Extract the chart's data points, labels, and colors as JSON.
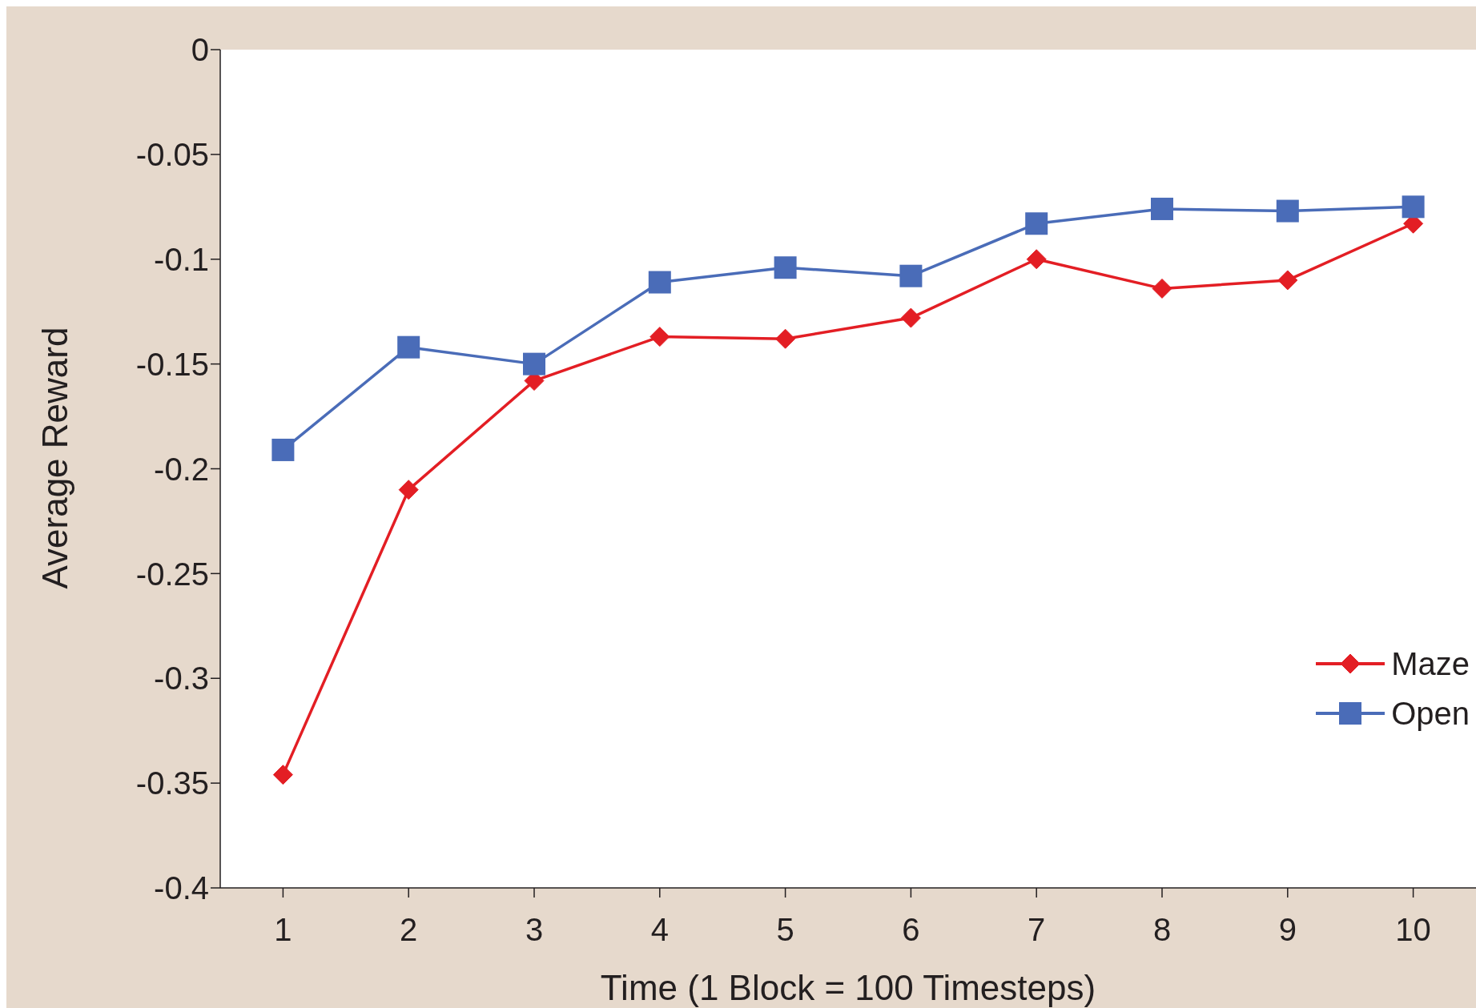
{
  "chart_data": {
    "type": "line",
    "xlabel": "Time (1 Block = 100 Timesteps)",
    "ylabel": "Average Reward",
    "categories": [
      "1",
      "2",
      "3",
      "4",
      "5",
      "6",
      "7",
      "8",
      "9",
      "10"
    ],
    "series": [
      {
        "name": "Maze",
        "color": "#e31e24",
        "marker": "diamond",
        "values": [
          -0.346,
          -0.21,
          -0.158,
          -0.137,
          -0.138,
          -0.128,
          -0.1,
          -0.114,
          -0.11,
          -0.083
        ]
      },
      {
        "name": "Open",
        "color": "#4a6cb8",
        "marker": "square",
        "values": [
          -0.191,
          -0.142,
          -0.15,
          -0.111,
          -0.104,
          -0.108,
          -0.083,
          -0.076,
          -0.077,
          -0.075
        ]
      }
    ],
    "ylim": [
      -0.4,
      0
    ],
    "yticks": [
      0,
      -0.05,
      -0.1,
      -0.15,
      -0.2,
      -0.25,
      -0.3,
      -0.35,
      -0.4
    ],
    "grid": false,
    "legend": "right",
    "line_style": "solid"
  }
}
